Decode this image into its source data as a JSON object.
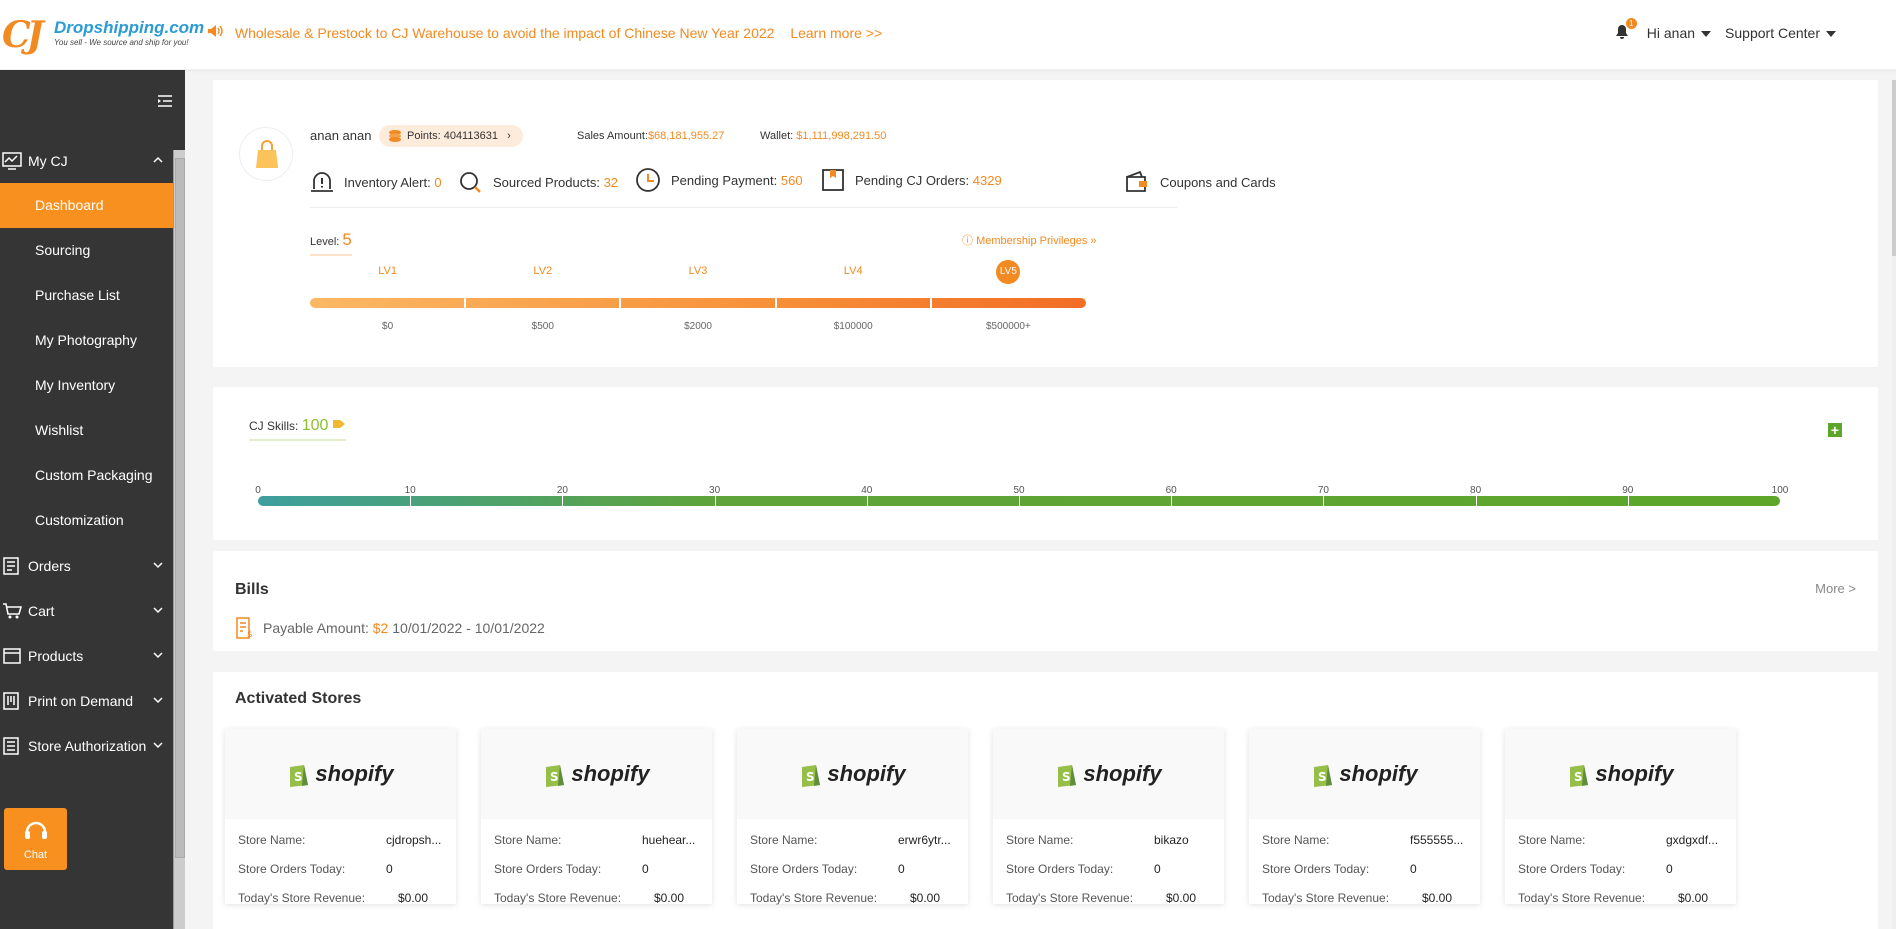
{
  "header": {
    "logo_brand": "Dropshipping.com",
    "logo_tagline": "You sell - We source and ship for you!",
    "notice": "Wholesale & Prestock to CJ Warehouse to avoid the impact of Chinese New Year 2022",
    "learn_more": "Learn more >>",
    "notification_count": "1",
    "user_greeting": "Hi anan",
    "support": "Support Center"
  },
  "sidebar": {
    "groups": [
      {
        "label": "My CJ",
        "icon": "dashboard-icon",
        "expanded": true
      },
      {
        "label": "Orders",
        "icon": "orders-icon"
      },
      {
        "label": "Cart",
        "icon": "cart-icon"
      },
      {
        "label": "Products",
        "icon": "products-icon"
      },
      {
        "label": "Print on Demand",
        "icon": "print-icon"
      },
      {
        "label": "Store Authorization",
        "icon": "store-icon"
      }
    ],
    "subitems": [
      "Dashboard",
      "Sourcing",
      "Purchase List",
      "My Photography",
      "My Inventory",
      "Wishlist",
      "Custom Packaging",
      "Customization"
    ],
    "active": "Dashboard",
    "chat_label": "Chat"
  },
  "profile": {
    "name": "anan anan",
    "points_label": "Points:",
    "points_value": "404113631",
    "sales_label": "Sales Amount:",
    "sales_value": "$68,181,955.27",
    "wallet_label": "Wallet:",
    "wallet_value": "$1,111,998,291.50",
    "quick": [
      {
        "label": "Inventory Alert:",
        "value": "0",
        "icon": "alert-icon"
      },
      {
        "label": "Sourced Products:",
        "value": "32",
        "icon": "search-icon"
      },
      {
        "label": "Pending Payment:",
        "value": "560",
        "icon": "clock-icon"
      },
      {
        "label": "Pending CJ Orders:",
        "value": "4329",
        "icon": "box-icon"
      },
      {
        "label": "Coupons and Cards",
        "value": "",
        "icon": "wallet-icon"
      }
    ],
    "level_label": "Level:",
    "level_value": "5",
    "privileges": "Membership Privileges",
    "levels": [
      "LV1",
      "LV2",
      "LV3",
      "LV4",
      "LV5"
    ],
    "level_thresholds": [
      "$0",
      "$500",
      "$2000",
      "$100000",
      "$500000+"
    ],
    "current_level_index": 4
  },
  "skills": {
    "label": "CJ Skills:",
    "value": "100",
    "ticks": [
      "0",
      "10",
      "20",
      "30",
      "40",
      "50",
      "60",
      "70",
      "80",
      "90",
      "100"
    ],
    "progress": 1.0
  },
  "bills": {
    "title": "Bills",
    "more": "More >",
    "payable_label": "Payable Amount:",
    "payable_value": "$2",
    "period": "10/01/2022 - 10/01/2022"
  },
  "stores": {
    "title": "Activated Stores",
    "labels": {
      "name": "Store Name:",
      "orders": "Store Orders Today:",
      "revenue": "Today's Store Revenue:"
    },
    "platform": "shopify",
    "items": [
      {
        "name": "cjdropsh...",
        "orders": "0",
        "revenue": "$0.00"
      },
      {
        "name": "huehear...",
        "orders": "0",
        "revenue": "$0.00"
      },
      {
        "name": "erwr6ytr...",
        "orders": "0",
        "revenue": "$0.00"
      },
      {
        "name": "bikazo",
        "orders": "0",
        "revenue": "$0.00"
      },
      {
        "name": "f555555...",
        "orders": "0",
        "revenue": "$0.00"
      },
      {
        "name": "gxdgxdf...",
        "orders": "0",
        "revenue": "$0.00"
      }
    ]
  },
  "colors": {
    "accent": "#f7901e",
    "sidebar": "#353535",
    "skills_green": "#5da62a"
  }
}
